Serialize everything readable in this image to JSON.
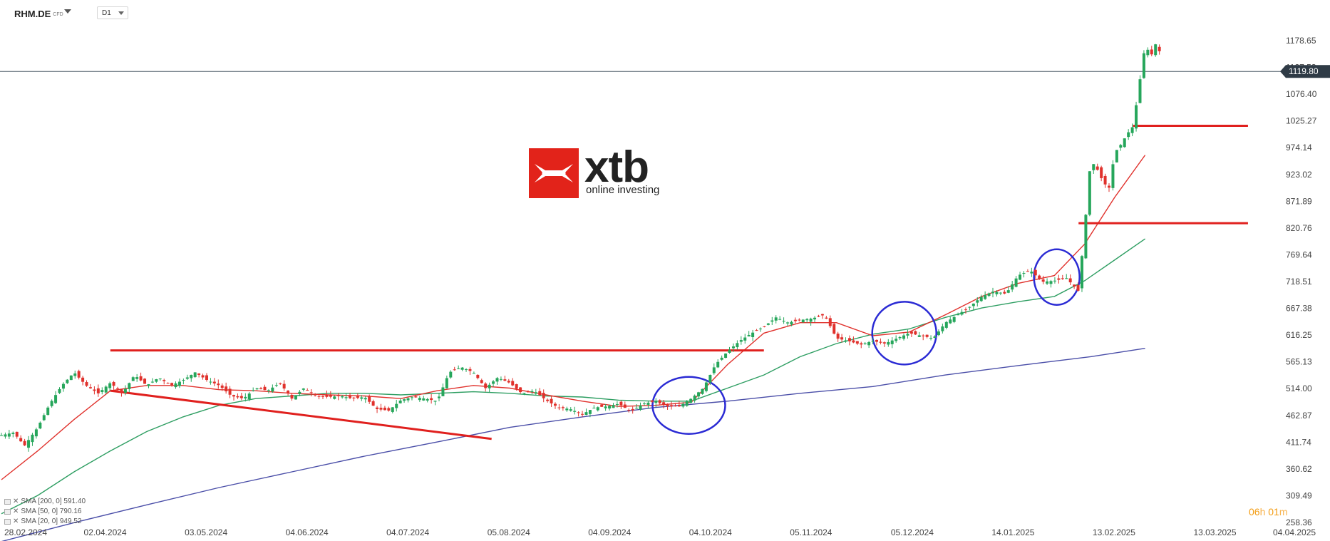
{
  "header": {
    "symbol": "RHM.DE",
    "instrument_type": "CFD",
    "timeframe": "D1"
  },
  "logo": {
    "name": "xtb",
    "tagline": "online investing"
  },
  "legend": [
    {
      "label": "SMA [200, 0] 591.40",
      "color": "#4a4ea8"
    },
    {
      "label": "SMA [50, 0] 790.16",
      "color": "#2e9e62"
    },
    {
      "label": "SMA [20, 0] 949.52",
      "color": "#e0312c"
    }
  ],
  "countdown": {
    "h": "06",
    "m": "01",
    "h_unit": "h",
    "m_unit": "m"
  },
  "chart_data": {
    "type": "candlestick",
    "price_axis_labels": [
      "1178.65",
      "1127.53",
      "1076.40",
      "1025.27",
      "974.14",
      "923.02",
      "871.89",
      "820.76",
      "769.64",
      "718.51",
      "667.38",
      "616.25",
      "565.13",
      "514.00",
      "462.87",
      "411.74",
      "360.62",
      "309.49",
      "258.36"
    ],
    "price_axis_values": [
      1178.65,
      1127.53,
      1076.4,
      1025.27,
      974.14,
      923.02,
      871.89,
      820.76,
      769.64,
      718.51,
      667.38,
      616.25,
      565.13,
      514.0,
      462.87,
      411.74,
      360.62,
      309.49,
      258.36
    ],
    "date_labels": [
      "28.02.2024",
      "02.04.2024",
      "03.05.2024",
      "04.06.2024",
      "04.07.2024",
      "05.08.2024",
      "04.09.2024",
      "04.10.2024",
      "05.11.2024",
      "05.12.2024",
      "14.01.2025",
      "13.02.2025",
      "13.03.2025",
      "04.04.2025"
    ],
    "current_price": {
      "label": "1119.80",
      "value": 1119.8
    },
    "close_path": [
      [
        0,
        425
      ],
      [
        10,
        430
      ],
      [
        19,
        405
      ],
      [
        30,
        440
      ],
      [
        40,
        485
      ],
      [
        50,
        520
      ],
      [
        60,
        545
      ],
      [
        70,
        520
      ],
      [
        80,
        505
      ],
      [
        90,
        525
      ],
      [
        100,
        505
      ],
      [
        110,
        540
      ],
      [
        120,
        520
      ],
      [
        130,
        535
      ],
      [
        140,
        520
      ],
      [
        150,
        530
      ],
      [
        160,
        545
      ],
      [
        170,
        530
      ],
      [
        180,
        520
      ],
      [
        190,
        500
      ],
      [
        200,
        495
      ],
      [
        210,
        515
      ],
      [
        220,
        510
      ],
      [
        230,
        525
      ],
      [
        240,
        495
      ],
      [
        250,
        515
      ],
      [
        260,
        500
      ],
      [
        270,
        498
      ],
      [
        280,
        500
      ],
      [
        290,
        495
      ],
      [
        300,
        498
      ],
      [
        310,
        475
      ],
      [
        320,
        472
      ],
      [
        330,
        492
      ],
      [
        340,
        498
      ],
      [
        350,
        495
      ],
      [
        360,
        490
      ],
      [
        370,
        545
      ],
      [
        380,
        555
      ],
      [
        390,
        545
      ],
      [
        400,
        515
      ],
      [
        410,
        535
      ],
      [
        420,
        525
      ],
      [
        430,
        505
      ],
      [
        440,
        510
      ],
      [
        450,
        492
      ],
      [
        460,
        478
      ],
      [
        470,
        475
      ],
      [
        480,
        465
      ],
      [
        490,
        478
      ],
      [
        500,
        480
      ],
      [
        510,
        485
      ],
      [
        520,
        470
      ],
      [
        530,
        485
      ],
      [
        540,
        490
      ],
      [
        550,
        480
      ],
      [
        560,
        480
      ],
      [
        570,
        495
      ],
      [
        580,
        515
      ],
      [
        590,
        560
      ],
      [
        600,
        585
      ],
      [
        610,
        605
      ],
      [
        620,
        620
      ],
      [
        630,
        632
      ],
      [
        640,
        650
      ],
      [
        650,
        640
      ],
      [
        660,
        645
      ],
      [
        670,
        648
      ],
      [
        680,
        655
      ],
      [
        690,
        610
      ],
      [
        700,
        605
      ],
      [
        710,
        598
      ],
      [
        720,
        605
      ],
      [
        730,
        600
      ],
      [
        740,
        610
      ],
      [
        750,
        620
      ],
      [
        760,
        615
      ],
      [
        770,
        610
      ],
      [
        780,
        640
      ],
      [
        790,
        655
      ],
      [
        800,
        670
      ],
      [
        810,
        690
      ],
      [
        820,
        700
      ],
      [
        830,
        695
      ],
      [
        840,
        730
      ],
      [
        850,
        740
      ],
      [
        860,
        718
      ],
      [
        870,
        720
      ],
      [
        880,
        725
      ],
      [
        890,
        700
      ],
      [
        895,
        820
      ],
      [
        900,
        950
      ],
      [
        905,
        935
      ],
      [
        910,
        910
      ],
      [
        915,
        895
      ],
      [
        920,
        965
      ],
      [
        925,
        980
      ],
      [
        930,
        1000
      ],
      [
        935,
        1015
      ],
      [
        945,
        1170
      ],
      [
        950,
        1150
      ],
      [
        955,
        1180
      ],
      [
        960,
        1120
      ]
    ],
    "sma20_path": [
      [
        0,
        340
      ],
      [
        30,
        395
      ],
      [
        60,
        455
      ],
      [
        90,
        510
      ],
      [
        120,
        520
      ],
      [
        150,
        520
      ],
      [
        180,
        512
      ],
      [
        210,
        510
      ],
      [
        240,
        505
      ],
      [
        270,
        502
      ],
      [
        300,
        500
      ],
      [
        330,
        495
      ],
      [
        360,
        510
      ],
      [
        390,
        520
      ],
      [
        420,
        515
      ],
      [
        450,
        502
      ],
      [
        480,
        490
      ],
      [
        510,
        480
      ],
      [
        540,
        482
      ],
      [
        570,
        488
      ],
      [
        600,
        560
      ],
      [
        630,
        620
      ],
      [
        660,
        640
      ],
      [
        690,
        640
      ],
      [
        720,
        615
      ],
      [
        750,
        622
      ],
      [
        780,
        655
      ],
      [
        810,
        690
      ],
      [
        840,
        715
      ],
      [
        870,
        730
      ],
      [
        895,
        790
      ],
      [
        920,
        880
      ],
      [
        945,
        960
      ]
    ],
    "sma50_path": [
      [
        0,
        275
      ],
      [
        30,
        310
      ],
      [
        60,
        355
      ],
      [
        90,
        395
      ],
      [
        120,
        432
      ],
      [
        150,
        460
      ],
      [
        180,
        482
      ],
      [
        210,
        495
      ],
      [
        240,
        500
      ],
      [
        270,
        505
      ],
      [
        300,
        505
      ],
      [
        330,
        502
      ],
      [
        360,
        505
      ],
      [
        390,
        508
      ],
      [
        420,
        505
      ],
      [
        450,
        500
      ],
      [
        480,
        498
      ],
      [
        510,
        492
      ],
      [
        540,
        490
      ],
      [
        570,
        490
      ],
      [
        600,
        515
      ],
      [
        630,
        540
      ],
      [
        660,
        575
      ],
      [
        690,
        600
      ],
      [
        720,
        618
      ],
      [
        750,
        628
      ],
      [
        780,
        650
      ],
      [
        810,
        668
      ],
      [
        840,
        680
      ],
      [
        870,
        690
      ],
      [
        895,
        720
      ],
      [
        920,
        760
      ],
      [
        945,
        800
      ]
    ],
    "sma200_path": [
      [
        0,
        222
      ],
      [
        60,
        258
      ],
      [
        120,
        292
      ],
      [
        180,
        325
      ],
      [
        240,
        355
      ],
      [
        300,
        385
      ],
      [
        360,
        412
      ],
      [
        420,
        440
      ],
      [
        480,
        460
      ],
      [
        540,
        478
      ],
      [
        600,
        490
      ],
      [
        660,
        505
      ],
      [
        720,
        518
      ],
      [
        780,
        540
      ],
      [
        840,
        558
      ],
      [
        900,
        575
      ],
      [
        945,
        591
      ]
    ],
    "annotations": {
      "resistance_lines": [
        {
          "value": 1016,
          "from_day": 935,
          "to_day": 1030
        },
        {
          "value": 830,
          "from_day": 890,
          "to_day": 1030
        },
        {
          "value": 587,
          "from_day": 90,
          "to_day": 630
        }
      ],
      "trend_line": {
        "from": [
          90,
          510
        ],
        "to": [
          405,
          418
        ]
      },
      "circles": [
        {
          "center": [
            568,
            482
          ],
          "label": "circle-1"
        },
        {
          "center": [
            746,
            620
          ],
          "label": "circle-2"
        },
        {
          "center": [
            872,
            727
          ],
          "label": "circle-3"
        }
      ]
    }
  }
}
